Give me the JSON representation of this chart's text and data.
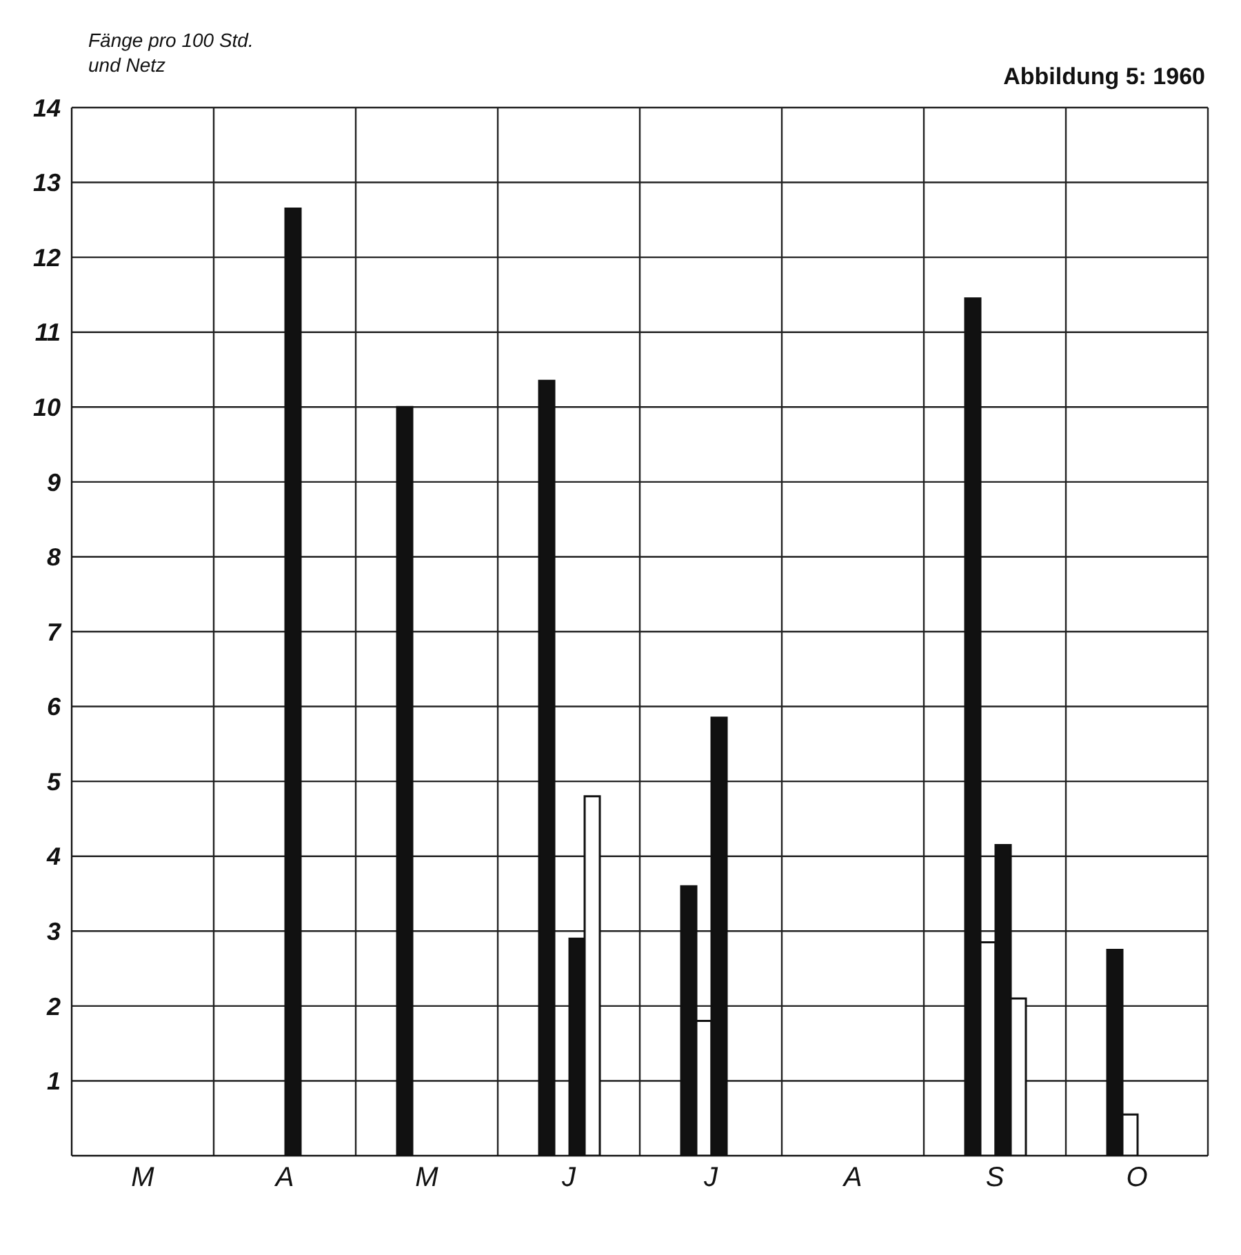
{
  "chart_data": {
    "type": "bar",
    "title": "Abbildung 5: 1960",
    "ylabel": "Fänge pro 100 Std. und Netz",
    "categories": [
      "M",
      "A",
      "M",
      "J",
      "J",
      "A",
      "S",
      "O"
    ],
    "series": [
      {
        "color": "#111111",
        "values": [
          null,
          null,
          10,
          10.35,
          3.6,
          null,
          11.45,
          2.75
        ]
      },
      {
        "color": "#ffffff",
        "values": [
          null,
          null,
          null,
          null,
          1.8,
          null,
          2.85,
          0.55
        ]
      },
      {
        "color": "#111111",
        "values": [
          null,
          12.65,
          null,
          2.9,
          5.85,
          null,
          4.15,
          null
        ]
      },
      {
        "color": "#ffffff",
        "values": [
          null,
          null,
          null,
          4.8,
          null,
          null,
          2.1,
          null
        ]
      }
    ],
    "ylim": [
      0,
      14
    ],
    "yticks": [
      {
        "value": 0,
        "label": null
      },
      1,
      2,
      3,
      4,
      5,
      6,
      7,
      8,
      9,
      10,
      11,
      12,
      13,
      14
    ],
    "grid": true,
    "legend": false
  }
}
